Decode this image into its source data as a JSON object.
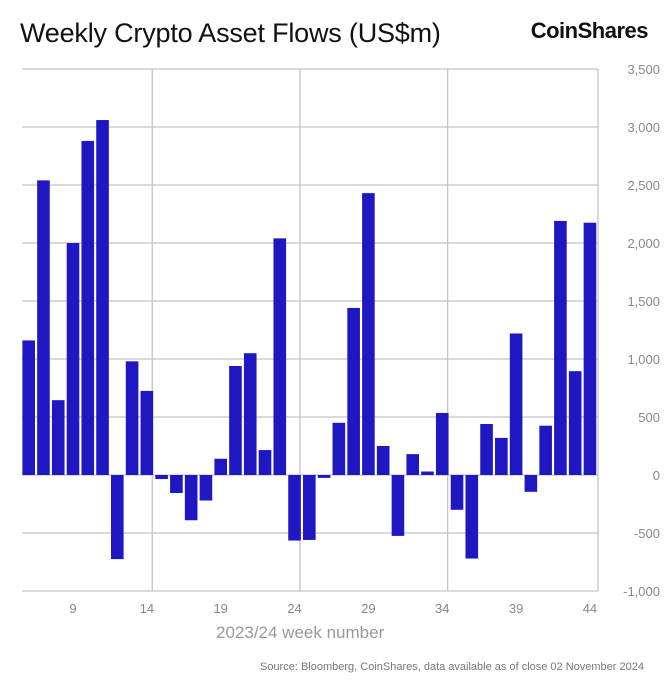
{
  "header": {
    "title": "Weekly Crypto Asset Flows (US$m)",
    "logo": "CoinShares"
  },
  "footer": {
    "source": "Source: Bloomberg, CoinShares, data available as of close 02 November 2024"
  },
  "chart_data": {
    "type": "bar",
    "title": "Weekly Crypto Asset Flows (US$m)",
    "xlabel": "2023/24 week number",
    "ylabel": "",
    "x": [
      6,
      7,
      8,
      9,
      10,
      11,
      12,
      13,
      14,
      15,
      16,
      17,
      18,
      19,
      20,
      21,
      22,
      23,
      24,
      25,
      26,
      27,
      28,
      29,
      30,
      31,
      32,
      33,
      34,
      35,
      36,
      37,
      38,
      39,
      40,
      41,
      42,
      43,
      44
    ],
    "values": [
      1160,
      2540,
      645,
      2000,
      2880,
      3060,
      -725,
      980,
      725,
      -35,
      -155,
      -390,
      -220,
      140,
      940,
      1050,
      215,
      2040,
      -565,
      -560,
      -25,
      450,
      1440,
      2430,
      250,
      -525,
      180,
      30,
      535,
      -300,
      -720,
      440,
      320,
      1220,
      -145,
      425,
      2190,
      895,
      2175
    ],
    "xticks": [
      "9",
      "14",
      "19",
      "24",
      "29",
      "34",
      "39",
      "44"
    ],
    "yticks": [
      "3,500",
      "3,000",
      "2,500",
      "2,000",
      "1,500",
      "1,000",
      "500",
      "0",
      "-500",
      "-1,000"
    ],
    "ylim": [
      -1000,
      3500
    ],
    "y_axis_side": "right",
    "grid": true,
    "bar_color": "#1e17c2",
    "grid_color": "#c4c4c4"
  }
}
